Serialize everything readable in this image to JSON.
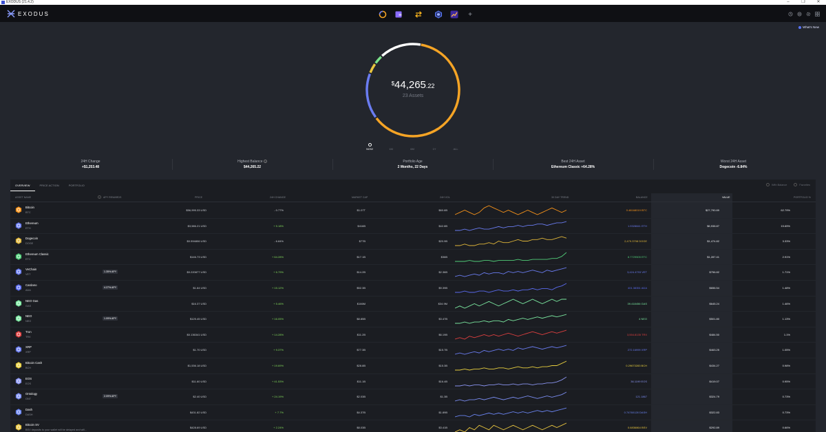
{
  "window": {
    "title": "EXODUS (21.4.2)",
    "minimize": "–",
    "maximize": "❐",
    "close": "✕"
  },
  "app": {
    "brand": "EXODUS"
  },
  "nav": [
    {
      "name": "portfolio",
      "icon": "portfolio-ring-icon",
      "color": "#ffffff"
    },
    {
      "name": "wallet",
      "icon": "wallet-icon",
      "color": "#8a6cff"
    },
    {
      "name": "exchange",
      "icon": "exchange-icon",
      "color": "#f5b21e"
    },
    {
      "name": "apps",
      "icon": "cube-app-icon",
      "color": "#5b7dff"
    },
    {
      "name": "trade",
      "icon": "trend-app-icon",
      "color": "#ffb54a"
    },
    {
      "name": "add",
      "icon": "plus-icon",
      "label": "+"
    }
  ],
  "header_right_icons": [
    "history-icon",
    "help-icon",
    "settings-icon",
    "grid-icon"
  ],
  "whats_new": "What's New",
  "portfolio": {
    "currency_symbol": "$",
    "total_whole": "44,265",
    "total_cents": ".22",
    "assets_count": "23 Assets",
    "ring_colors": [
      "#f5a425",
      "#6a7cf0",
      "#ffffff",
      "#7be28a",
      "#e9c53f"
    ]
  },
  "timeline": [
    {
      "label": "NOW",
      "selected": true
    },
    {
      "label": "1M",
      "selected": false
    },
    {
      "label": "6M",
      "selected": false
    },
    {
      "label": "1Y",
      "selected": false
    },
    {
      "label": "ALL",
      "selected": false
    }
  ],
  "stats": [
    {
      "label": "24H Change",
      "value": "+$1,253.48"
    },
    {
      "label": "Highest Balance",
      "value": "$44,265.22",
      "info": "i"
    },
    {
      "label": "Portfolio Age",
      "value": "2 Months, 22 Days"
    },
    {
      "label": "Best 24H Asset",
      "value": "Ethereum Classic +64.28%"
    },
    {
      "label": "Worst 24H Asset",
      "value": "Dogecoin -6.84%"
    }
  ],
  "tabs": [
    "OVERVIEW",
    "PRICE ACTION",
    "PORTFOLIO"
  ],
  "toggles": [
    "With Balance",
    "Favorites"
  ],
  "columns": {
    "asset": "ASSET NAME",
    "apy": "APY REWARDS",
    "price": "PRICE",
    "change": "24H CHANGE",
    "mcap": "MARKET CAP",
    "vol": "24H VOL",
    "trend": "30 DAY TREND",
    "balance": "BALANCE",
    "value": "VALUE",
    "pct": "PORTFOLIO %",
    "apy_badge": "i"
  },
  "rows": [
    {
      "name": "Bitcoin",
      "ticker": "BTC",
      "apy": "",
      "price": "$56,995.33 USD",
      "change": "- 0.77%",
      "dir": "neg",
      "mcap": "$1.07T",
      "vol": "$60.6B",
      "balance": "0.48168019 BTC",
      "value": "$27,790.89",
      "pct": "62.79%",
      "color": "#f7931a",
      "trend": [
        5,
        6,
        7,
        6,
        5,
        6,
        8,
        9,
        8,
        7,
        6,
        7,
        6,
        5,
        6,
        7,
        6,
        5,
        6,
        7,
        8,
        7,
        6,
        7
      ]
    },
    {
      "name": "Ethereum",
      "ticker": "ETH",
      "apy": "",
      "price": "$3,586.21 USD",
      "change": "+ 5.18%",
      "dir": "pos",
      "mcap": "$416B",
      "vol": "$42.8B",
      "balance": "1.9328841 ETH",
      "value": "$6,938.87",
      "pct": "15.65%",
      "color": "#6a7cf0",
      "trend": [
        3,
        3,
        4,
        3,
        4,
        5,
        4,
        4,
        5,
        6,
        5,
        6,
        6,
        7,
        6,
        7,
        7,
        8,
        8,
        7,
        8,
        9,
        9,
        10
      ]
    },
    {
      "name": "Dogecoin",
      "ticker": "DOGE",
      "apy": "",
      "price": "$0.594806 USD",
      "change": "- 6.84%",
      "dir": "neg",
      "mcap": "$77B",
      "vol": "$20.9B",
      "balance": "2,479.3798 DOGE",
      "value": "$1,474.82",
      "pct": "3.33%",
      "color": "#e2b83a",
      "trend": [
        4,
        4,
        5,
        4,
        4,
        5,
        5,
        6,
        5,
        7,
        6,
        6,
        7,
        8,
        7,
        7,
        8,
        8,
        9,
        8,
        8,
        9,
        10,
        9
      ]
    },
    {
      "name": "Ethereum Classic",
      "ticker": "ETC",
      "apy": "",
      "price": "$146.73 USD",
      "change": "+ 64.28%",
      "dir": "pos",
      "mcap": "$17.1B",
      "vol": "$36B",
      "balance": "8.7729505 ETC",
      "value": "$1,287.41",
      "pct": "2.91%",
      "color": "#52d07a",
      "trend": [
        2,
        2,
        2,
        3,
        2,
        2,
        3,
        3,
        2,
        3,
        3,
        3,
        3,
        4,
        3,
        3,
        4,
        4,
        4,
        4,
        5,
        5,
        7,
        11
      ]
    },
    {
      "name": "VeChain",
      "ticker": "VET",
      "apy": "1.35% APY",
      "price": "$0.220877 USD",
      "change": "+ 6.79%",
      "dir": "pos",
      "mcap": "$14.2B",
      "vol": "$2.36B",
      "balance": "3,424.4793 VET",
      "value": "$756.82",
      "pct": "1.71%",
      "color": "#6a7cf0",
      "trend": [
        3,
        4,
        3,
        4,
        5,
        4,
        6,
        5,
        6,
        6,
        5,
        7,
        6,
        7,
        6,
        7,
        8,
        7,
        6,
        8,
        7,
        8,
        9,
        10
      ]
    },
    {
      "name": "Cardano",
      "ticker": "ADA",
      "apy": "4.27% APY",
      "price": "$1.64 USD",
      "change": "+ 15.12%",
      "dir": "pos",
      "mcap": "$52.3B",
      "vol": "$9.39B",
      "balance": "401.38351 ADA",
      "value": "$656.54",
      "pct": "1.48%",
      "color": "#5b6cf0",
      "trend": [
        3,
        3,
        4,
        3,
        3,
        4,
        4,
        3,
        4,
        5,
        4,
        4,
        5,
        4,
        5,
        5,
        6,
        5,
        6,
        6,
        5,
        7,
        8,
        10
      ]
    },
    {
      "name": "NEO Gas",
      "ticker": "GAS",
      "apy": "",
      "price": "$16.37 USD",
      "change": "+ 5.46%",
      "dir": "pos",
      "mcap": "$166M",
      "vol": "$34.9M",
      "balance": "39.418456 GAS",
      "value": "$645.24",
      "pct": "1.46%",
      "color": "#7be8a0",
      "trend": [
        4,
        5,
        4,
        5,
        6,
        5,
        6,
        7,
        6,
        5,
        6,
        7,
        8,
        7,
        6,
        7,
        8,
        7,
        6,
        7,
        8,
        7,
        8,
        8
      ]
    },
    {
      "name": "NEO",
      "ticker": "NEO",
      "apy": "1.09% APY",
      "price": "$125.45 USD",
      "change": "+ 16.05%",
      "dir": "pos",
      "mcap": "$8.85B",
      "vol": "$3.47B",
      "balance": "4 NEO",
      "value": "$501.80",
      "pct": "1.13%",
      "color": "#7be8a0",
      "trend": [
        3,
        3,
        4,
        3,
        4,
        4,
        5,
        4,
        5,
        5,
        4,
        6,
        5,
        6,
        7,
        6,
        7,
        8,
        7,
        8,
        9,
        8,
        9,
        10
      ]
    },
    {
      "name": "Tron",
      "ticker": "TRX",
      "apy": "",
      "price": "$0.136341 USD",
      "change": "+ 14.28%",
      "dir": "pos",
      "mcap": "$11.2B",
      "vol": "$6.19B",
      "balance": "3,554.8135 TRX",
      "value": "$484.50",
      "pct": "1.1%",
      "color": "#e04040",
      "trend": [
        4,
        5,
        4,
        6,
        5,
        6,
        7,
        6,
        7,
        6,
        7,
        8,
        7,
        6,
        7,
        8,
        9,
        8,
        7,
        8,
        9,
        8,
        9,
        10
      ]
    },
    {
      "name": "XRP",
      "ticker": "XRP",
      "apy": "",
      "price": "$1.70 USD",
      "change": "+ 9.37%",
      "dir": "pos",
      "mcap": "$77.3B",
      "vol": "$15.7B",
      "balance": "272.16999 XRP",
      "value": "$463.25",
      "pct": "1.05%",
      "color": "#6a7cf0",
      "trend": [
        3,
        4,
        3,
        4,
        5,
        4,
        6,
        5,
        6,
        7,
        6,
        7,
        6,
        8,
        7,
        8,
        9,
        8,
        7,
        8,
        9,
        8,
        9,
        10
      ]
    },
    {
      "name": "Bitcoin Cash",
      "ticker": "BCH",
      "apy": "",
      "price": "$1,536.18 USD",
      "change": "+ 19.69%",
      "dir": "pos",
      "mcap": "$28.8B",
      "vol": "$15.3B",
      "balance": "0.29673283 BCH",
      "value": "$434.27",
      "pct": "0.98%",
      "color": "#e9d03f",
      "trend": [
        3,
        3,
        4,
        3,
        4,
        4,
        5,
        4,
        4,
        5,
        5,
        4,
        5,
        6,
        5,
        5,
        6,
        5,
        6,
        6,
        7,
        7,
        9,
        11
      ]
    },
    {
      "name": "EOS",
      "ticker": "EOS",
      "apy": "",
      "price": "$11.60 USD",
      "change": "+ 41.53%",
      "dir": "pos",
      "mcap": "$11.1B",
      "vol": "$16.4B",
      "balance": "36.1199 EOS",
      "value": "$419.07",
      "pct": "0.95%",
      "color": "#8a94f0",
      "trend": [
        2,
        2,
        3,
        2,
        3,
        3,
        2,
        3,
        3,
        4,
        3,
        3,
        4,
        3,
        4,
        4,
        3,
        4,
        4,
        5,
        5,
        6,
        8,
        11
      ]
    },
    {
      "name": "Ontology",
      "ticker": "ONT",
      "apy": "2.09% APY",
      "price": "$2.40 USD",
      "change": "+ 24.19%",
      "dir": "pos",
      "mcap": "$2.03B",
      "vol": "$1.3B",
      "balance": "121.1867",
      "value": "$324.79",
      "pct": "0.73%",
      "color": "#7a8cf0",
      "trend": [
        3,
        4,
        3,
        4,
        4,
        5,
        4,
        5,
        6,
        5,
        4,
        5,
        6,
        5,
        6,
        7,
        6,
        5,
        6,
        7,
        6,
        7,
        8,
        10
      ]
    },
    {
      "name": "Dash",
      "ticker": "DASH",
      "apy": "",
      "price": "$431.82 USD",
      "change": "+ 7.7%",
      "dir": "pos",
      "mcap": "$4.37B",
      "vol": "$1.89B",
      "balance": "0.74760128 DASH",
      "value": "$322.83",
      "pct": "0.73%",
      "color": "#6a84f0",
      "trend": [
        3,
        4,
        4,
        3,
        5,
        4,
        5,
        6,
        5,
        6,
        5,
        6,
        7,
        6,
        7,
        6,
        7,
        8,
        7,
        8,
        7,
        8,
        9,
        10
      ]
    },
    {
      "name": "Bitcoin SV",
      "ticker": "BSV deposits to your wallet will be delayed and will...",
      "apy": "",
      "price": "$428.69 USD",
      "change": "+ 2.24%",
      "dir": "pos",
      "mcap": "$8.03B",
      "vol": "$3.41B",
      "balance": "0.6836864 BSV",
      "value": "$292.89",
      "pct": "0.66%",
      "color": "#e9c53f",
      "trend": [
        4,
        5,
        4,
        6,
        5,
        7,
        6,
        5,
        7,
        6,
        5,
        6,
        7,
        6,
        5,
        6,
        7,
        6,
        5,
        6,
        7,
        6,
        7,
        8
      ]
    }
  ]
}
